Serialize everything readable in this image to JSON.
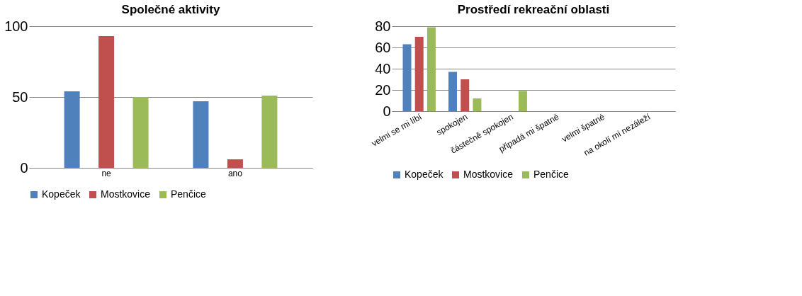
{
  "chart_data": [
    {
      "type": "bar",
      "title": "Společné aktivity",
      "categories": [
        "ne",
        "ano"
      ],
      "series": [
        {
          "name": "Kopeček",
          "color": "#4f81bd",
          "values": [
            54,
            47
          ]
        },
        {
          "name": "Mostkovice",
          "color": "#c0504d",
          "values": [
            93,
            6
          ]
        },
        {
          "name": "Penčice",
          "color": "#9bbb59",
          "values": [
            50,
            51
          ]
        }
      ],
      "ylim": [
        0,
        100
      ],
      "yticks": [
        0,
        50,
        100
      ],
      "grid": "y",
      "legend": "bottom"
    },
    {
      "type": "bar",
      "title": "Prostředí rekreační oblasti",
      "categories": [
        "velmi se mi líbí",
        "spokojen",
        "částečně spokojen",
        "připadá mi špatné",
        "velmi špatné",
        "na okolí mi nezáleží"
      ],
      "series": [
        {
          "name": "Kopeček",
          "color": "#4f81bd",
          "values": [
            63,
            37,
            0,
            0,
            0,
            0
          ]
        },
        {
          "name": "Mostkovice",
          "color": "#c0504d",
          "values": [
            70,
            30,
            0,
            0,
            0,
            0
          ]
        },
        {
          "name": "Penčice",
          "color": "#9bbb59",
          "values": [
            79,
            12,
            19,
            0,
            0,
            0
          ]
        }
      ],
      "ylim": [
        0,
        80
      ],
      "yticks": [
        0,
        20,
        40,
        60,
        80
      ],
      "grid": "y",
      "legend": "bottom"
    }
  ]
}
